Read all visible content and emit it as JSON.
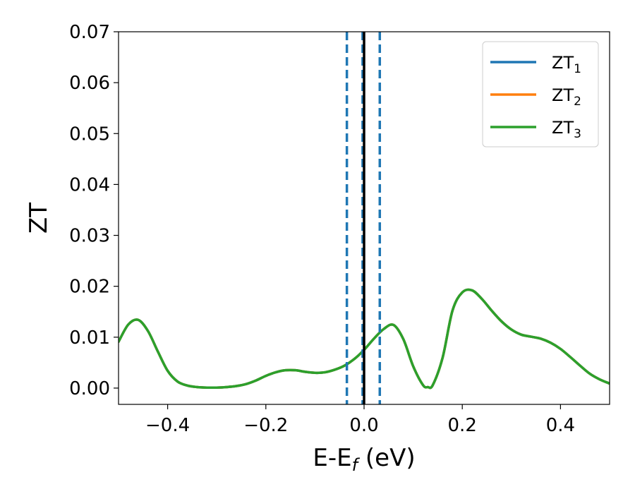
{
  "chart_data": {
    "type": "line",
    "xlabel": {
      "main": "E-E",
      "subscript": "f",
      "suffix": " (eV)"
    },
    "ylabel": "ZT",
    "xlim": [
      -0.5,
      0.5
    ],
    "ylim": [
      -0.0032,
      0.07
    ],
    "x_ticks": [
      {
        "value": -0.4,
        "label": "−0.4"
      },
      {
        "value": -0.2,
        "label": "−0.2"
      },
      {
        "value": 0.0,
        "label": "0.0"
      },
      {
        "value": 0.2,
        "label": "0.2"
      },
      {
        "value": 0.4,
        "label": "0.4"
      }
    ],
    "y_ticks": [
      {
        "value": 0.0,
        "label": "0.00"
      },
      {
        "value": 0.01,
        "label": "0.01"
      },
      {
        "value": 0.02,
        "label": "0.02"
      },
      {
        "value": 0.03,
        "label": "0.03"
      },
      {
        "value": 0.04,
        "label": "0.04"
      },
      {
        "value": 0.05,
        "label": "0.05"
      },
      {
        "value": 0.06,
        "label": "0.06"
      },
      {
        "value": 0.07,
        "label": "0.07"
      }
    ],
    "legend": {
      "placement": "top-right",
      "entries": [
        {
          "label": "ZT",
          "subscript": "1",
          "color": "#1f77b4"
        },
        {
          "label": "ZT",
          "subscript": "2",
          "color": "#ff7f0e"
        },
        {
          "label": "ZT",
          "subscript": "3",
          "color": "#2ca02c"
        }
      ]
    },
    "x": [
      -0.5,
      -0.48,
      -0.46,
      -0.44,
      -0.42,
      -0.4,
      -0.38,
      -0.36,
      -0.34,
      -0.32,
      -0.3,
      -0.28,
      -0.26,
      -0.24,
      -0.22,
      -0.2,
      -0.18,
      -0.16,
      -0.14,
      -0.12,
      -0.1,
      -0.08,
      -0.06,
      -0.04,
      -0.02,
      0.0,
      0.02,
      0.04,
      0.06,
      0.08,
      0.1,
      0.12,
      0.13,
      0.14,
      0.16,
      0.18,
      0.2,
      0.22,
      0.24,
      0.26,
      0.28,
      0.3,
      0.32,
      0.34,
      0.36,
      0.38,
      0.4,
      0.42,
      0.44,
      0.46,
      0.48,
      0.5
    ],
    "series": [
      {
        "name": "ZT₁",
        "color": "#1f77b4",
        "values": [
          0.0091,
          0.0125,
          0.0134,
          0.0112,
          0.0072,
          0.0034,
          0.0013,
          0.0005,
          0.0002,
          0.0001,
          0.0001,
          0.0002,
          0.0004,
          0.0008,
          0.0015,
          0.0024,
          0.0031,
          0.0035,
          0.0035,
          0.0032,
          0.003,
          0.0031,
          0.0036,
          0.0044,
          0.0057,
          0.0075,
          0.0097,
          0.0116,
          0.0124,
          0.0096,
          0.0043,
          0.0006,
          0.0002,
          0.0006,
          0.006,
          0.0152,
          0.0188,
          0.0192,
          0.0175,
          0.0152,
          0.0131,
          0.0115,
          0.0105,
          0.0101,
          0.0097,
          0.0089,
          0.0077,
          0.0061,
          0.0044,
          0.0028,
          0.0017,
          0.0009
        ]
      },
      {
        "name": "ZT₂",
        "color": "#ff7f0e",
        "values": [
          0.0091,
          0.0125,
          0.0134,
          0.0112,
          0.0072,
          0.0034,
          0.0013,
          0.0005,
          0.0002,
          0.0001,
          0.0001,
          0.0002,
          0.0004,
          0.0008,
          0.0015,
          0.0024,
          0.0031,
          0.0035,
          0.0035,
          0.0032,
          0.003,
          0.0031,
          0.0036,
          0.0044,
          0.0057,
          0.0075,
          0.0097,
          0.0116,
          0.0124,
          0.0096,
          0.0043,
          0.0006,
          0.0002,
          0.0006,
          0.006,
          0.0152,
          0.0188,
          0.0192,
          0.0175,
          0.0152,
          0.0131,
          0.0115,
          0.0105,
          0.0101,
          0.0097,
          0.0089,
          0.0077,
          0.0061,
          0.0044,
          0.0028,
          0.0017,
          0.0009
        ]
      },
      {
        "name": "ZT₃",
        "color": "#2ca02c",
        "values": [
          0.0091,
          0.0125,
          0.0134,
          0.0112,
          0.0072,
          0.0034,
          0.0013,
          0.0005,
          0.0002,
          0.0001,
          0.0001,
          0.0002,
          0.0004,
          0.0008,
          0.0015,
          0.0024,
          0.0031,
          0.0035,
          0.0035,
          0.0032,
          0.003,
          0.0031,
          0.0036,
          0.0044,
          0.0057,
          0.0075,
          0.0097,
          0.0116,
          0.0124,
          0.0096,
          0.0043,
          0.0006,
          0.0002,
          0.0006,
          0.006,
          0.0152,
          0.0188,
          0.0192,
          0.0175,
          0.0152,
          0.0131,
          0.0115,
          0.0105,
          0.0101,
          0.0097,
          0.0089,
          0.0077,
          0.0061,
          0.0044,
          0.0028,
          0.0017,
          0.0009
        ]
      }
    ],
    "vertical_lines": [
      {
        "x": -0.035,
        "style": "dashed",
        "color": "#1f77b4"
      },
      {
        "x": -0.003,
        "style": "dashed",
        "color": "#1f77b4"
      },
      {
        "x": 0.032,
        "style": "dashed",
        "color": "#1f77b4"
      },
      {
        "x": 0.0,
        "style": "solid",
        "color": "#000000"
      }
    ],
    "grid": false
  }
}
